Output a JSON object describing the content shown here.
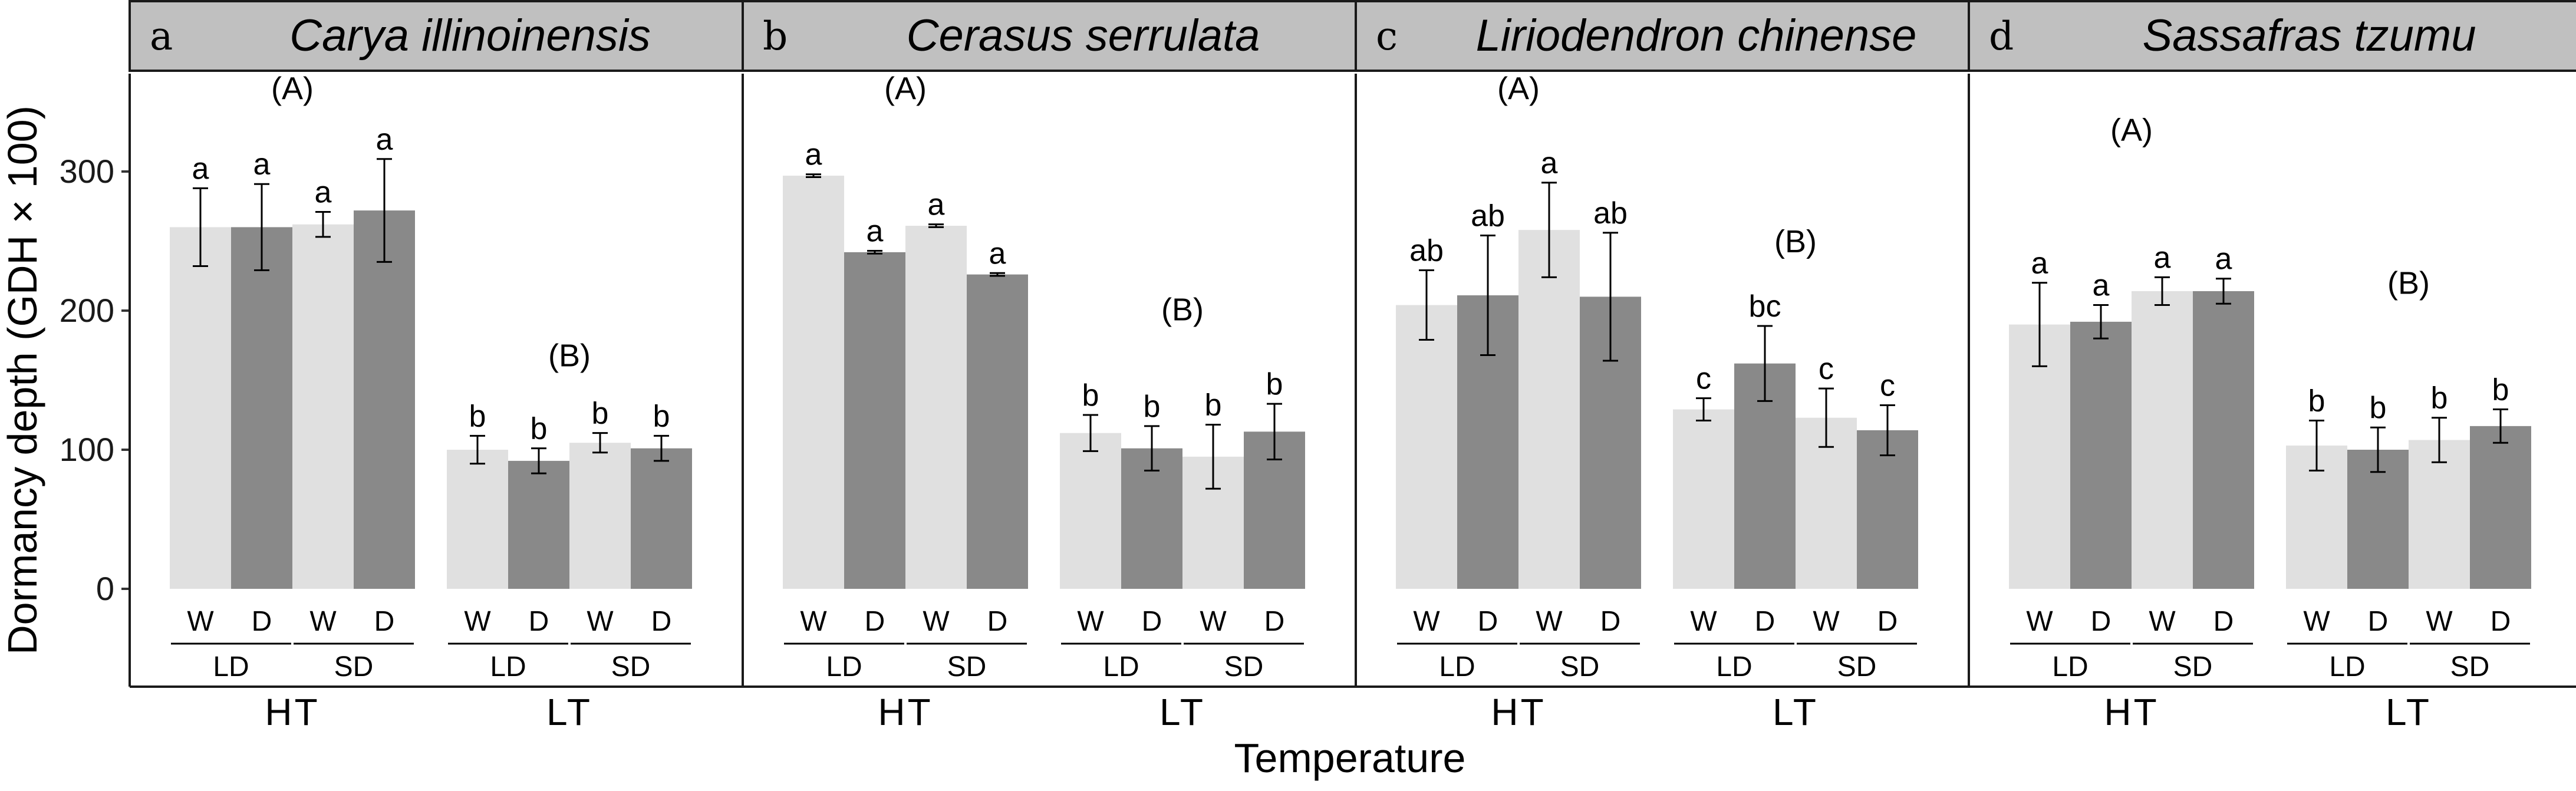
{
  "chart_data": {
    "type": "bar",
    "ylabel": "Dormancy depth (GDH × 100)",
    "xlabel": "Temperature",
    "ylim": [
      -70,
      370
    ],
    "yticks": [
      0,
      100,
      200,
      300
    ],
    "grid": false,
    "bar_categories": [
      "W",
      "D",
      "W",
      "D"
    ],
    "photoperiods": [
      "LD",
      "SD"
    ],
    "temperatures": [
      "HT",
      "LT"
    ],
    "colors": {
      "W": "#e0e0e0",
      "D": "#898989"
    },
    "panels": [
      {
        "letter": "a",
        "species": "Carya illinoinensis",
        "groups": [
          {
            "temp": "HT",
            "group_label": "(A)",
            "group_label_y": 352,
            "values": [
              260,
              260,
              262,
              272
            ],
            "errors": [
              28,
              31,
              9,
              37
            ],
            "letters": [
              "a",
              "a",
              "a",
              "a"
            ]
          },
          {
            "temp": "LT",
            "group_label": "(B)",
            "group_label_y": 160,
            "values": [
              100,
              92,
              105,
              101
            ],
            "errors": [
              10,
              9,
              7,
              9
            ],
            "letters": [
              "b",
              "b",
              "b",
              "b"
            ]
          }
        ]
      },
      {
        "letter": "b",
        "species": "Cerasus serrulata",
        "groups": [
          {
            "temp": "HT",
            "group_label": "(A)",
            "group_label_y": 352,
            "values": [
              297,
              242,
              261,
              226
            ],
            "errors": [
              1,
              1,
              1,
              1
            ],
            "letters": [
              "a",
              "a",
              "a",
              "a"
            ]
          },
          {
            "temp": "LT",
            "group_label": "(B)",
            "group_label_y": 193,
            "values": [
              112,
              101,
              95,
              113
            ],
            "errors": [
              13,
              16,
              23,
              20
            ],
            "letters": [
              "b",
              "b",
              "b",
              "b"
            ]
          }
        ]
      },
      {
        "letter": "c",
        "species": "Liriodendron chinense",
        "groups": [
          {
            "temp": "HT",
            "group_label": "(A)",
            "group_label_y": 352,
            "values": [
              204,
              211,
              258,
              210
            ],
            "errors": [
              25,
              43,
              34,
              46
            ],
            "letters": [
              "ab",
              "ab",
              "a",
              "ab"
            ]
          },
          {
            "temp": "LT",
            "group_label": "(B)",
            "group_label_y": 242,
            "values": [
              129,
              162,
              123,
              114
            ],
            "errors": [
              8,
              27,
              21,
              18
            ],
            "letters": [
              "c",
              "bc",
              "c",
              "c"
            ]
          }
        ]
      },
      {
        "letter": "d",
        "species": "Sassafras tzumu",
        "groups": [
          {
            "temp": "HT",
            "group_label": "(A)",
            "group_label_y": 322,
            "values": [
              190,
              192,
              214,
              214
            ],
            "errors": [
              30,
              12,
              10,
              9
            ],
            "letters": [
              "a",
              "a",
              "a",
              "a"
            ]
          },
          {
            "temp": "LT",
            "group_label": "(B)",
            "group_label_y": 212,
            "values": [
              103,
              100,
              107,
              117
            ],
            "errors": [
              18,
              16,
              16,
              12
            ],
            "letters": [
              "b",
              "b",
              "b",
              "b"
            ]
          }
        ]
      }
    ]
  }
}
